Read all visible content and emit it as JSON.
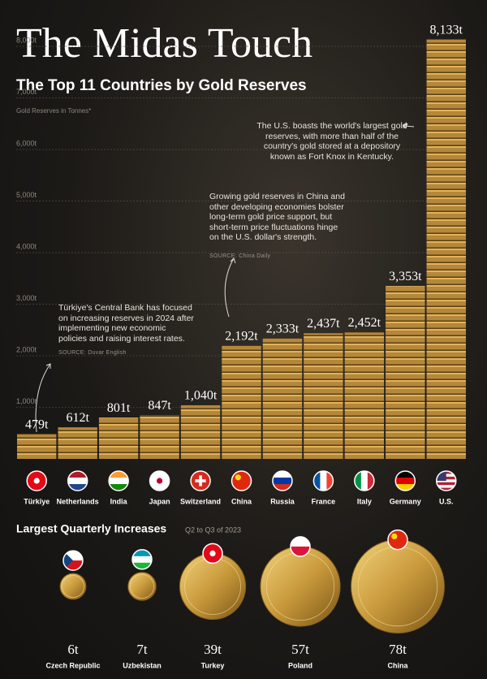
{
  "chart_data": [
    {
      "type": "bar",
      "title": "The Midas Touch",
      "subtitle": "The Top 11 Countries by Gold Reserves",
      "y_label": "Gold Reserves in Tonnes*",
      "categories": [
        "Türkiye",
        "Netherlands",
        "India",
        "Japan",
        "Switzerland",
        "China",
        "Russia",
        "France",
        "Italy",
        "Germany",
        "U.S."
      ],
      "values": [
        479,
        612,
        801,
        847,
        1040,
        2192,
        2333,
        2437,
        2452,
        3353,
        8133
      ],
      "value_labels": [
        "479t",
        "612t",
        "801t",
        "847t",
        "1,040t",
        "2,192t",
        "2,333t",
        "2,437t",
        "2,452t",
        "3,353t",
        "8,133t"
      ],
      "color": "#b5873a",
      "ylim": [
        0,
        8300
      ],
      "yticks": [
        {
          "value": 1000,
          "label": "1,000t"
        },
        {
          "value": 2000,
          "label": "2,000t"
        },
        {
          "value": 3000,
          "label": "3,000t"
        },
        {
          "value": 4000,
          "label": "4,000t"
        },
        {
          "value": 5000,
          "label": "5,000t"
        },
        {
          "value": 6000,
          "label": "6,000t"
        },
        {
          "value": 7000,
          "label": "7,000t"
        },
        {
          "value": 8000,
          "label": "8,000t"
        }
      ],
      "grid": true,
      "annotations": [
        {
          "text": "The U.S. boasts the world's largest gold reserves, with more than half of the country's gold stored at a depository known as Fort Knox in Kentucky."
        },
        {
          "text": "Growing gold reserves in China and other developing economies bolster long-term gold price support, but short-term price fluctuations hinge on the U.S. dollar's strength.",
          "source": "SOURCE: China Daily"
        },
        {
          "text": "Türkiye's Central Bank has focused on increasing reserves in 2024 after implementing new economic policies and raising interest rates.",
          "source": "SOURCE: Duvar English"
        }
      ]
    },
    {
      "type": "coin",
      "title": "Largest Quarterly Increases",
      "subtitle": "Q2 to Q3 of 2023",
      "categories": [
        "Czech Republic",
        "Uzbekistan",
        "Turkey",
        "Poland",
        "China"
      ],
      "values": [
        6,
        7,
        39,
        57,
        78
      ],
      "value_labels": [
        "6t",
        "7t",
        "39t",
        "57t",
        "78t"
      ],
      "color": "#c9a042"
    }
  ]
}
